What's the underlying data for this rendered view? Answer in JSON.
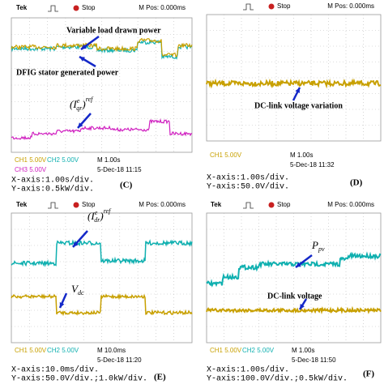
{
  "panels": [
    {
      "header": {
        "brand": "Tek",
        "status": "Stop",
        "position": "M Pos: 0.000ms"
      },
      "annotations": [
        "Variable load drawn power",
        "DFIG stator generated power"
      ],
      "symbols": [
        {
          "base": "I",
          "sub": "qr",
          "sup": "e",
          "outer": "ref"
        }
      ],
      "channels": [
        "CH1 5.00V",
        "CH2 5.00V",
        "CH3 5.00V"
      ],
      "timebase": "M 1.00s",
      "timestamp": "5-Dec-18 11:15",
      "x_axis": "X-axis:1.00s/div.",
      "y_axis": "Y-axis:0.5kW/div.",
      "label": "(C)"
    },
    {
      "header": {
        "status": "Stop",
        "position": "M Pos: 0.000ms"
      },
      "annotations": [
        "DC-link voltage variation"
      ],
      "symbols": [],
      "channels": [
        "CH1 5.00V"
      ],
      "timebase": "M 1.00s",
      "timestamp": "5-Dec-18 11:32",
      "x_axis": "X-axis:1.00s/div.",
      "y_axis": "Y-axis:50.0V/div.",
      "label": "(D)"
    },
    {
      "header": {
        "brand": "Tek",
        "status": "Stop",
        "position": "M Pos: 0.000ms"
      },
      "annotations": [],
      "symbols": [
        {
          "base": "I",
          "sub": "dr",
          "sup": "e",
          "outer": "ref"
        },
        {
          "base": "V",
          "sub": "dc"
        }
      ],
      "channels": [
        "CH1 5.00V",
        "CH2 5.00V"
      ],
      "timebase": "M 10.0ms",
      "timestamp": "5-Dec-18 11:20",
      "x_axis": "X-axis:10.0ms/div.",
      "y_axis": "Y-axis:50.0V/div.;1.0kW/div.",
      "label": "(E)"
    },
    {
      "header": {
        "brand": "Tek",
        "status": "Stop",
        "position": "M Pos: 0.000ms"
      },
      "annotations": [
        "DC-link voltage"
      ],
      "symbols": [
        {
          "base": "P",
          "sub": "pv"
        }
      ],
      "channels": [
        "CH1 5.00V",
        "CH2 5.00V"
      ],
      "timebase": "M 1.00s",
      "timestamp": "5-Dec-18 11:50",
      "x_axis": "X-axis:1.00s/div.",
      "y_axis": "Y-axis:100.0V/div.;0.5kW/div.",
      "label": "(F)"
    }
  ]
}
